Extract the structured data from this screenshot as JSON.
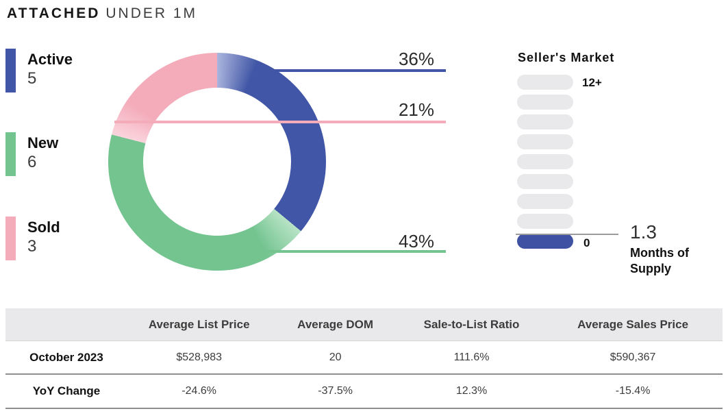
{
  "header": {
    "title_primary": "ATTACHED",
    "title_secondary": "UNDER 1M"
  },
  "legend": {
    "items": [
      {
        "label": "Active",
        "value": "5",
        "color": "#4156a6"
      },
      {
        "label": "New",
        "value": "6",
        "color": "#74c490"
      },
      {
        "label": "Sold",
        "value": "3",
        "color": "#f4acba"
      }
    ]
  },
  "donut": {
    "callouts": [
      {
        "segment": "Active",
        "pct": "36%"
      },
      {
        "segment": "Sold",
        "pct": "21%"
      },
      {
        "segment": "New",
        "pct": "43%"
      }
    ]
  },
  "gauge": {
    "title": "Seller's Market",
    "max_label": "12+",
    "min_label": "0",
    "value": "1.3",
    "unit": "Months of Supply",
    "fill_color": "#3f51a3",
    "track_color": "#e9e9eb"
  },
  "table": {
    "columns": [
      "",
      "Average List Price",
      "Average DOM",
      "Sale-to-List Ratio",
      "Average Sales Price"
    ],
    "rows": [
      {
        "label": "October 2023",
        "values": [
          "$528,983",
          "20",
          "111.6%",
          "$590,367"
        ]
      },
      {
        "label": "YoY Change",
        "values": [
          "-24.6%",
          "-37.5%",
          "12.3%",
          "-15.4%"
        ]
      }
    ]
  },
  "chart_data": [
    {
      "type": "pie",
      "donut": true,
      "title": "ATTACHED UNDER 1M",
      "categories": [
        "Active",
        "New",
        "Sold"
      ],
      "values": [
        5,
        6,
        3
      ],
      "percent_labels": [
        "36%",
        "43%",
        "21%"
      ],
      "colors": [
        "#4156a6",
        "#74c490",
        "#f4acba"
      ],
      "order_clockwise_from_top": [
        "Active",
        "New",
        "Sold"
      ],
      "legend_position": "left"
    },
    {
      "type": "bar",
      "subtype": "segmented-gauge",
      "title": "Seller's Market",
      "scale": {
        "min_label": "0",
        "max_label": "12+"
      },
      "segments_total": 9,
      "segments_filled": 1,
      "value": 1.3,
      "unit": "Months of Supply"
    },
    {
      "type": "table",
      "columns": [
        "",
        "Average List Price",
        "Average DOM",
        "Sale-to-List Ratio",
        "Average Sales Price"
      ],
      "rows": [
        [
          "October 2023",
          "$528,983",
          "20",
          "111.6%",
          "$590,367"
        ],
        [
          "YoY Change",
          "-24.6%",
          "-37.5%",
          "12.3%",
          "-15.4%"
        ]
      ]
    }
  ]
}
